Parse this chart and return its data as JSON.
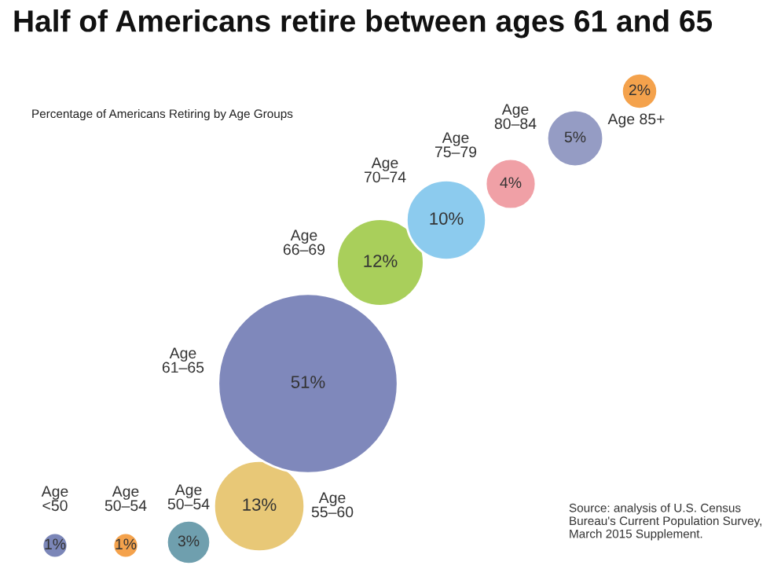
{
  "chart_data": {
    "type": "other",
    "title": "Half of Americans retire between ages 61 and 65",
    "subtitle": "Percentage of Americans Retiring by Age Groups",
    "categories": [
      "Age\n<50",
      "Age\n50–54",
      "Age\n50–54",
      "Age\n55–60",
      "Age\n61–65",
      "Age\n66–69",
      "Age\n70–74",
      "Age\n75–79",
      "Age\n80–84",
      "Age 85+"
    ],
    "values": [
      1,
      1,
      3,
      13,
      51,
      12,
      10,
      4,
      5,
      2
    ],
    "colors": [
      "#7b86b8",
      "#f4a24c",
      "#6f9fae",
      "#e8c877",
      "#7f88bb",
      "#a9cf5b",
      "#8ccbee",
      "#f0a0a6",
      "#959cc4",
      "#f4a24c"
    ],
    "value_labels": [
      "1%",
      "1%",
      "3%",
      "13%",
      "51%",
      "12%",
      "10%",
      "4%",
      "5%",
      "2%"
    ],
    "annotations": [
      "Source: analysis of U.S. Census Bureau's Current Population Survey, March 2015 Supplement."
    ]
  }
}
